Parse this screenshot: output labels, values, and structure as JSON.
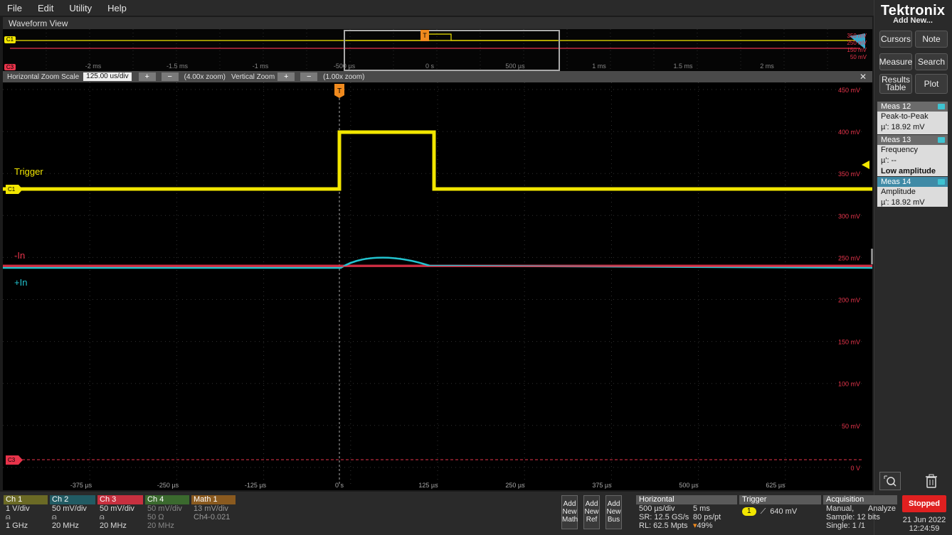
{
  "menu": [
    "File",
    "Edit",
    "Utility",
    "Help"
  ],
  "window": {
    "title": "Waveform View"
  },
  "brand": {
    "logo": "Tektronix",
    "add_new": "Add New..."
  },
  "right_buttons": {
    "cursors": "Cursors",
    "note": "Note",
    "measure": "Measure",
    "search": "Search",
    "results_table": "Results Table",
    "plot": "Plot"
  },
  "measurements": [
    {
      "header": "Meas 12",
      "name": "Peak-to-Peak",
      "value": "µ': 18.92 mV",
      "extra": ""
    },
    {
      "header": "Meas 13",
      "name": "Frequency",
      "value": "µ': --",
      "extra": "Low amplitude"
    },
    {
      "header": "Meas 14",
      "name": "Amplitude",
      "value": "µ': 18.92 mV",
      "extra": ""
    }
  ],
  "overview": {
    "x_ticks": [
      "-2 ms",
      "-1.5 ms",
      "-1 ms",
      "-500 µs",
      "0 s",
      "500 µs",
      "1 ms",
      "1.5 ms",
      "2 ms"
    ],
    "y_labels": [
      "350 mV",
      "250 mV",
      "150 mV",
      "50 mV"
    ]
  },
  "zoom": {
    "h_label": "Horizontal Zoom Scale",
    "h_value": "125.00 us/div",
    "h_factor": "(4.00x zoom)",
    "v_label": "Vertical Zoom",
    "v_factor": "(1.00x zoom)",
    "plus": "+",
    "minus": "−",
    "close": "✕"
  },
  "plot": {
    "x_ticks": [
      "-375 µs",
      "-250 µs",
      "-125 µs",
      "0 s",
      "125 µs",
      "250 µs",
      "375 µs",
      "500 µs",
      "625 µs"
    ],
    "y_ticks": [
      "450 mV",
      "400 mV",
      "350 mV",
      "300 mV",
      "250 mV",
      "200 mV",
      "150 mV",
      "100 mV",
      "50 mV",
      "0 V"
    ],
    "labels": {
      "trigger": "Trigger",
      "minus_in": "-In",
      "plus_in": "+In"
    },
    "markers": {
      "c1": "C1",
      "c3": "C3",
      "t": "T"
    }
  },
  "channels": [
    {
      "hdr": "Ch 1",
      "l1": "1 V/div",
      "l2": "",
      "l3": "1 GHz",
      "color": "#c8c84a"
    },
    {
      "hdr": "Ch 2",
      "l1": "50 mV/div",
      "l2": "",
      "l3": "20 MHz",
      "color": "#2c9fb0"
    },
    {
      "hdr": "Ch 3",
      "l1": "50 mV/div",
      "l2": "",
      "l3": "20 MHz",
      "color": "#e03c4a"
    },
    {
      "hdr": "Ch 4",
      "l1": "50 mV/div",
      "l2": "50 Ω",
      "l3": "20 MHz",
      "color": "#4a8f3a"
    },
    {
      "hdr": "Math 1",
      "l1": "13 mV/div",
      "l2": "Ch4-0.021",
      "l3": "",
      "color": "#b8731f"
    }
  ],
  "add_buttons": [
    {
      "l1": "Add",
      "l2": "New",
      "l3": "Math"
    },
    {
      "l1": "Add",
      "l2": "New",
      "l3": "Ref"
    },
    {
      "l1": "Add",
      "l2": "New",
      "l3": "Bus"
    }
  ],
  "horizontal": {
    "hdr": "Horizontal",
    "scale": "500 µs/div",
    "window": "5 ms",
    "sr": "SR: 12.5 GS/s",
    "pt": "80 ps/pt",
    "rl": "RL: 62.5 Mpts",
    "pos": "49%"
  },
  "trigger": {
    "hdr": "Trigger",
    "source": "1",
    "level": "640 mV"
  },
  "acquisition": {
    "hdr": "Acquisition",
    "mode": "Manual,",
    "analyze": "Analyze",
    "sample": "Sample: 12 bits",
    "single": "Single: 1 /1"
  },
  "status": {
    "state": "Stopped",
    "date": "21 Jun 2022",
    "time": "12:24:59"
  },
  "colors": {
    "ch1": "#f2e600",
    "ch2": "#22c4d0",
    "ch3": "#e8334a",
    "trigger_marker": "#f08a1e",
    "stopped": "#e02020"
  }
}
